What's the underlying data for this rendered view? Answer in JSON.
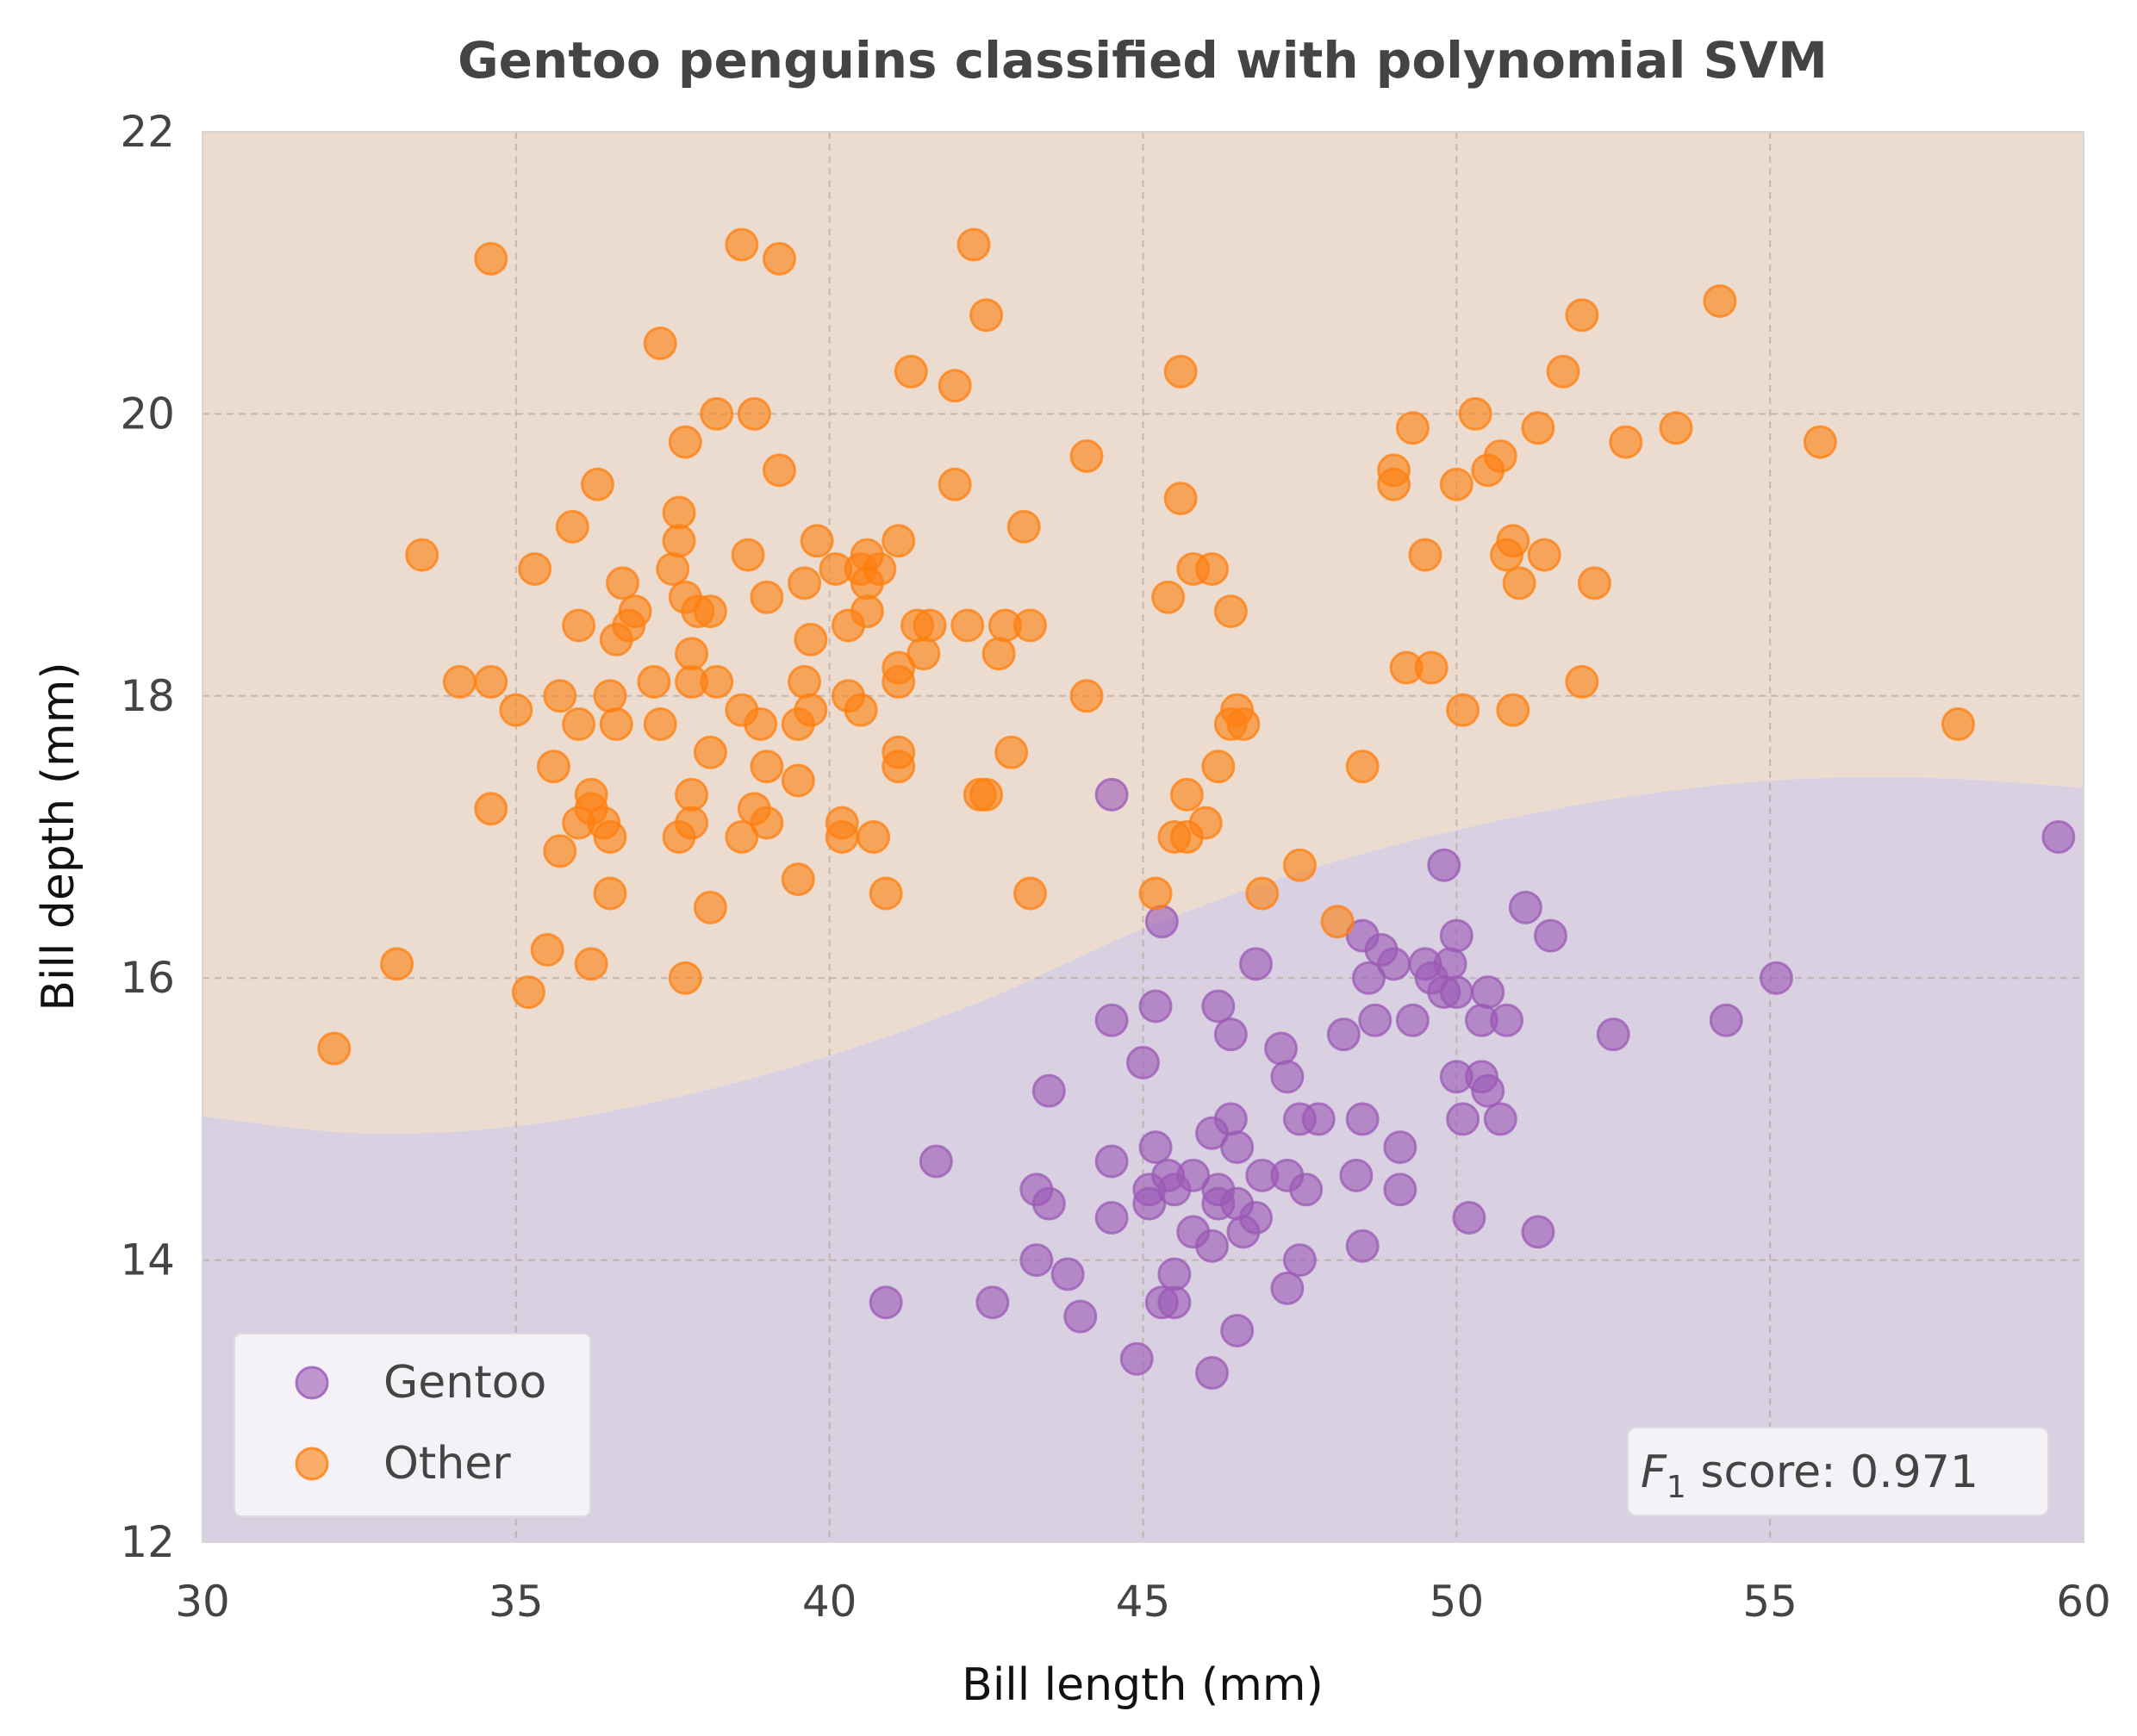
{
  "chart_data": {
    "type": "scatter",
    "title": "Gentoo penguins classified with polynomial SVM",
    "xlabel": "Bill length (mm)",
    "ylabel": "Bill depth (mm)",
    "xlim": [
      30,
      60
    ],
    "ylim": [
      12,
      22
    ],
    "x_ticks": [
      "30",
      "35",
      "40",
      "45",
      "50",
      "55",
      "60"
    ],
    "y_ticks": [
      "12",
      "14",
      "16",
      "18",
      "20",
      "22"
    ],
    "grid": true,
    "legend_position": "lower-left",
    "annotation": {
      "prefix": "F",
      "subscript": "1",
      "text": " score: 0.971",
      "position": "lower-right"
    },
    "colors": {
      "gentoo": "#9b59b6",
      "other": "#ff7f0e",
      "region_gentoo": "#d9d0e2",
      "region_other": "#ecdbcf",
      "grid": "#b8a8a0",
      "text": "#444444"
    },
    "decision_boundary": {
      "x": [
        30,
        32.5,
        35,
        37.5,
        40,
        42.5,
        45,
        47.5,
        50,
        52.5,
        55,
        57.5,
        60
      ],
      "y": [
        15.02,
        14.9,
        14.95,
        15.15,
        15.45,
        15.85,
        16.35,
        16.75,
        17.05,
        17.27,
        17.4,
        17.42,
        17.35
      ]
    },
    "series": [
      {
        "name": "Gentoo",
        "points": [
          [
            44.5,
            17.3
          ],
          [
            59.6,
            17.0
          ],
          [
            49.8,
            16.8
          ],
          [
            51.1,
            16.5
          ],
          [
            45.3,
            16.4
          ],
          [
            48.5,
            16.3
          ],
          [
            51.5,
            16.3
          ],
          [
            50.0,
            16.3
          ],
          [
            48.8,
            16.2
          ],
          [
            49.0,
            16.1
          ],
          [
            49.9,
            16.1
          ],
          [
            46.8,
            16.1
          ],
          [
            49.5,
            16.1
          ],
          [
            48.6,
            16.0
          ],
          [
            49.6,
            16.0
          ],
          [
            55.1,
            16.0
          ],
          [
            49.8,
            15.9
          ],
          [
            50.0,
            15.9
          ],
          [
            50.5,
            15.9
          ],
          [
            46.2,
            15.8
          ],
          [
            45.2,
            15.8
          ],
          [
            44.5,
            15.7
          ],
          [
            48.7,
            15.7
          ],
          [
            49.3,
            15.7
          ],
          [
            50.4,
            15.7
          ],
          [
            50.8,
            15.7
          ],
          [
            54.3,
            15.7
          ],
          [
            46.4,
            15.6
          ],
          [
            48.2,
            15.6
          ],
          [
            52.5,
            15.6
          ],
          [
            47.2,
            15.5
          ],
          [
            45.0,
            15.4
          ],
          [
            47.3,
            15.3
          ],
          [
            50.0,
            15.3
          ],
          [
            50.4,
            15.3
          ],
          [
            50.5,
            15.2
          ],
          [
            43.5,
            15.2
          ],
          [
            47.5,
            15.0
          ],
          [
            47.8,
            15.0
          ],
          [
            48.5,
            15.0
          ],
          [
            50.1,
            15.0
          ],
          [
            50.7,
            15.0
          ],
          [
            46.4,
            15.0
          ],
          [
            46.1,
            14.9
          ],
          [
            45.2,
            14.8
          ],
          [
            46.5,
            14.8
          ],
          [
            49.1,
            14.8
          ],
          [
            41.7,
            14.7
          ],
          [
            44.5,
            14.7
          ],
          [
            45.4,
            14.6
          ],
          [
            45.8,
            14.6
          ],
          [
            46.9,
            14.6
          ],
          [
            47.3,
            14.6
          ],
          [
            48.4,
            14.6
          ],
          [
            43.3,
            14.5
          ],
          [
            45.1,
            14.5
          ],
          [
            45.5,
            14.5
          ],
          [
            46.2,
            14.5
          ],
          [
            47.6,
            14.5
          ],
          [
            49.1,
            14.5
          ],
          [
            43.5,
            14.4
          ],
          [
            45.1,
            14.4
          ],
          [
            46.2,
            14.4
          ],
          [
            46.5,
            14.4
          ],
          [
            44.5,
            14.3
          ],
          [
            46.8,
            14.3
          ],
          [
            50.2,
            14.3
          ],
          [
            45.8,
            14.2
          ],
          [
            46.6,
            14.2
          ],
          [
            51.3,
            14.2
          ],
          [
            46.1,
            14.1
          ],
          [
            48.5,
            14.1
          ],
          [
            43.3,
            14.0
          ],
          [
            47.5,
            14.0
          ],
          [
            43.8,
            13.9
          ],
          [
            45.5,
            13.9
          ],
          [
            47.3,
            13.8
          ],
          [
            40.9,
            13.7
          ],
          [
            42.6,
            13.7
          ],
          [
            45.3,
            13.7
          ],
          [
            45.5,
            13.7
          ],
          [
            44.0,
            13.6
          ],
          [
            46.5,
            13.5
          ],
          [
            44.9,
            13.3
          ],
          [
            46.1,
            13.2
          ]
        ]
      },
      {
        "name": "Other",
        "points": [
          [
            34.6,
            21.1
          ],
          [
            38.6,
            21.2
          ],
          [
            39.2,
            21.1
          ],
          [
            42.3,
            21.2
          ],
          [
            42.5,
            20.7
          ],
          [
            37.3,
            20.5
          ],
          [
            41.3,
            20.3
          ],
          [
            42.0,
            20.2
          ],
          [
            38.2,
            20.0
          ],
          [
            38.8,
            20.0
          ],
          [
            37.7,
            19.8
          ],
          [
            39.2,
            19.6
          ],
          [
            36.3,
            19.5
          ],
          [
            42.0,
            19.5
          ],
          [
            44.1,
            19.7
          ],
          [
            45.6,
            20.3
          ],
          [
            45.6,
            19.4
          ],
          [
            37.6,
            19.3
          ],
          [
            35.9,
            19.2
          ],
          [
            43.1,
            19.2
          ],
          [
            37.6,
            19.1
          ],
          [
            39.8,
            19.1
          ],
          [
            41.1,
            19.1
          ],
          [
            33.5,
            19.0
          ],
          [
            38.7,
            19.0
          ],
          [
            40.6,
            19.0
          ],
          [
            35.3,
            18.9
          ],
          [
            37.5,
            18.9
          ],
          [
            40.1,
            18.9
          ],
          [
            40.5,
            18.9
          ],
          [
            40.8,
            18.9
          ],
          [
            45.8,
            18.9
          ],
          [
            46.1,
            18.9
          ],
          [
            36.7,
            18.8
          ],
          [
            39.6,
            18.8
          ],
          [
            40.6,
            18.8
          ],
          [
            37.7,
            18.7
          ],
          [
            39.0,
            18.7
          ],
          [
            45.4,
            18.7
          ],
          [
            36.9,
            18.6
          ],
          [
            37.9,
            18.6
          ],
          [
            38.1,
            18.6
          ],
          [
            40.6,
            18.6
          ],
          [
            46.4,
            18.6
          ],
          [
            36.0,
            18.5
          ],
          [
            36.8,
            18.5
          ],
          [
            40.3,
            18.5
          ],
          [
            41.4,
            18.5
          ],
          [
            41.6,
            18.5
          ],
          [
            42.2,
            18.5
          ],
          [
            42.8,
            18.5
          ],
          [
            43.2,
            18.5
          ],
          [
            36.6,
            18.4
          ],
          [
            39.7,
            18.4
          ],
          [
            37.8,
            18.3
          ],
          [
            41.5,
            18.3
          ],
          [
            42.7,
            18.3
          ],
          [
            41.1,
            18.2
          ],
          [
            34.1,
            18.1
          ],
          [
            34.6,
            18.1
          ],
          [
            37.2,
            18.1
          ],
          [
            37.8,
            18.1
          ],
          [
            38.2,
            18.1
          ],
          [
            39.6,
            18.1
          ],
          [
            41.1,
            18.1
          ],
          [
            35.7,
            18.0
          ],
          [
            36.5,
            18.0
          ],
          [
            40.3,
            18.0
          ],
          [
            44.1,
            18.0
          ],
          [
            35.0,
            17.9
          ],
          [
            38.6,
            17.9
          ],
          [
            39.7,
            17.9
          ],
          [
            40.5,
            17.9
          ],
          [
            36.0,
            17.8
          ],
          [
            36.6,
            17.8
          ],
          [
            37.3,
            17.8
          ],
          [
            38.9,
            17.8
          ],
          [
            39.5,
            17.8
          ],
          [
            46.4,
            17.8
          ],
          [
            46.6,
            17.8
          ],
          [
            46.5,
            17.9
          ],
          [
            38.1,
            17.6
          ],
          [
            42.9,
            17.6
          ],
          [
            41.1,
            17.6
          ],
          [
            35.6,
            17.5
          ],
          [
            39.0,
            17.5
          ],
          [
            41.1,
            17.5
          ],
          [
            46.2,
            17.5
          ],
          [
            48.5,
            17.5
          ],
          [
            39.5,
            17.4
          ],
          [
            36.2,
            17.3
          ],
          [
            37.8,
            17.3
          ],
          [
            42.4,
            17.3
          ],
          [
            42.5,
            17.3
          ],
          [
            45.7,
            17.3
          ],
          [
            36.2,
            17.2
          ],
          [
            38.8,
            17.2
          ],
          [
            34.6,
            17.2
          ],
          [
            36.0,
            17.1
          ],
          [
            36.4,
            17.1
          ],
          [
            37.8,
            17.1
          ],
          [
            39.0,
            17.1
          ],
          [
            40.2,
            17.1
          ],
          [
            46.0,
            17.1
          ],
          [
            36.5,
            17.0
          ],
          [
            37.6,
            17.0
          ],
          [
            38.6,
            17.0
          ],
          [
            40.2,
            17.0
          ],
          [
            40.7,
            17.0
          ],
          [
            45.5,
            17.0
          ],
          [
            45.7,
            17.0
          ],
          [
            35.7,
            16.9
          ],
          [
            47.5,
            16.8
          ],
          [
            39.5,
            16.7
          ],
          [
            36.5,
            16.6
          ],
          [
            40.9,
            16.6
          ],
          [
            43.2,
            16.6
          ],
          [
            45.2,
            16.6
          ],
          [
            46.9,
            16.6
          ],
          [
            38.1,
            16.5
          ],
          [
            48.1,
            16.4
          ],
          [
            35.5,
            16.2
          ],
          [
            33.1,
            16.1
          ],
          [
            36.2,
            16.1
          ],
          [
            37.7,
            16.0
          ],
          [
            35.2,
            15.9
          ],
          [
            32.1,
            15.5
          ],
          [
            49.0,
            19.6
          ],
          [
            49.0,
            19.5
          ],
          [
            49.3,
            19.9
          ],
          [
            50.0,
            19.5
          ],
          [
            50.3,
            20.0
          ],
          [
            50.5,
            19.6
          ],
          [
            50.7,
            19.7
          ],
          [
            51.3,
            19.9
          ],
          [
            51.7,
            20.3
          ],
          [
            52.0,
            20.7
          ],
          [
            52.7,
            19.8
          ],
          [
            53.5,
            19.9
          ],
          [
            54.2,
            20.8
          ],
          [
            55.8,
            19.8
          ],
          [
            49.5,
            19.0
          ],
          [
            50.8,
            19.0
          ],
          [
            50.9,
            19.1
          ],
          [
            51.4,
            19.0
          ],
          [
            51.0,
            18.8
          ],
          [
            52.2,
            18.8
          ],
          [
            49.2,
            18.2
          ],
          [
            49.6,
            18.2
          ],
          [
            52.0,
            18.1
          ],
          [
            50.1,
            17.9
          ],
          [
            50.9,
            17.9
          ],
          [
            58.0,
            17.8
          ]
        ]
      }
    ]
  }
}
